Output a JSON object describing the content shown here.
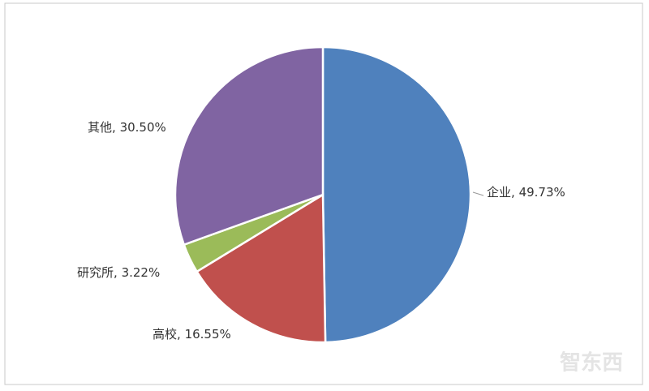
{
  "chart_data": {
    "type": "pie",
    "categories": [
      "企业",
      "高校",
      "研究所",
      "其他"
    ],
    "values": [
      49.73,
      16.55,
      3.22,
      30.5
    ],
    "value_labels": [
      "49.73%",
      "16.55%",
      "3.22%",
      "30.50%"
    ],
    "label_separator": ", ",
    "colors": [
      "#4f81bd",
      "#c0504d",
      "#9bbb59",
      "#8064a2"
    ],
    "start_angle": "top",
    "direction": "clockwise"
  },
  "watermark": "智东西"
}
